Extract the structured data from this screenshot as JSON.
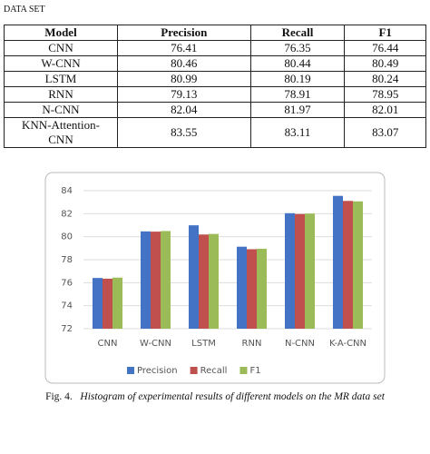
{
  "header": {
    "title": "DATA SET"
  },
  "table": {
    "columns": [
      "Model",
      "Precision",
      "Recall",
      "F1"
    ],
    "rows": [
      [
        "CNN",
        76.41,
        76.35,
        76.44
      ],
      [
        "W-CNN",
        80.46,
        80.44,
        80.49
      ],
      [
        "LSTM",
        80.99,
        80.19,
        80.24
      ],
      [
        "RNN",
        79.13,
        78.91,
        78.95
      ],
      [
        "N-CNN",
        82.04,
        81.97,
        82.01
      ],
      [
        "KNN-Attention-CNN",
        83.55,
        83.11,
        83.07
      ]
    ]
  },
  "chart_data": {
    "type": "bar",
    "categories": [
      "CNN",
      "W-CNN",
      "LSTM",
      "RNN",
      "N-CNN",
      "K-A-CNN"
    ],
    "series": [
      {
        "name": "Precision",
        "color": "#4472c4",
        "values": [
          76.41,
          80.46,
          80.99,
          79.13,
          82.04,
          83.55
        ]
      },
      {
        "name": "Recall",
        "color": "#c0504d",
        "values": [
          76.35,
          80.44,
          80.19,
          78.91,
          81.97,
          83.11
        ]
      },
      {
        "name": "F1",
        "color": "#9bbb59",
        "values": [
          76.44,
          80.49,
          80.24,
          78.95,
          82.01,
          83.07
        ]
      }
    ],
    "ylim": [
      72,
      84
    ],
    "yticks": [
      72,
      74,
      76,
      78,
      80,
      82,
      84
    ],
    "grid": true,
    "legend": "bottom"
  },
  "caption": {
    "label": "Fig. 4.",
    "text": "Histogram of experimental results of different models on the MR data set"
  }
}
